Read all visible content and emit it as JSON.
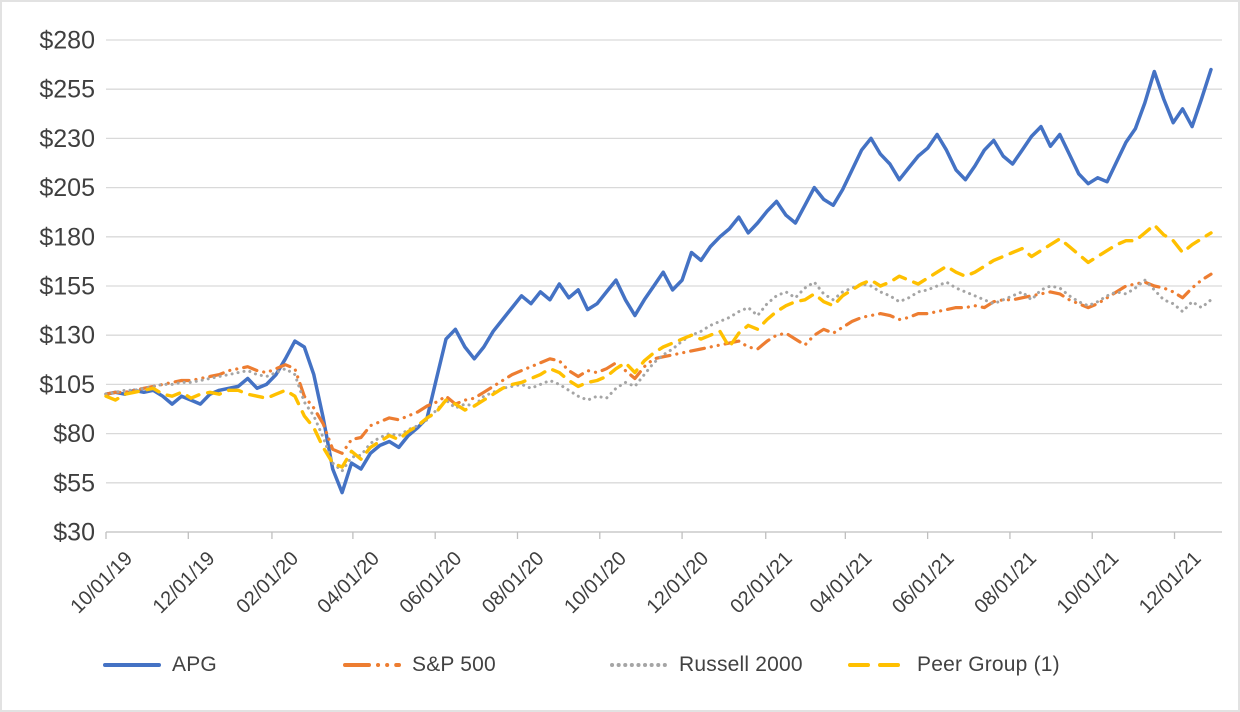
{
  "chart_data": {
    "type": "line",
    "title": "",
    "grid": true,
    "legend_position": "bottom",
    "y_axis": {
      "min": 30,
      "max": 280,
      "step": 25,
      "tick_labels": [
        "$30",
        "$55",
        "$80",
        "$105",
        "$130",
        "$155",
        "$180",
        "$205",
        "$230",
        "$255",
        "$280"
      ],
      "currency_prefix": "$"
    },
    "x_axis": {
      "tick_labels": [
        "10/01/19",
        "12/01/19",
        "02/01/20",
        "04/01/20",
        "06/01/20",
        "08/01/20",
        "10/01/20",
        "12/01/20",
        "02/01/21",
        "04/01/21",
        "06/01/21",
        "08/01/21",
        "10/01/21",
        "12/01/21"
      ],
      "tick_days": [
        0,
        61,
        123,
        183,
        244,
        305,
        366,
        427,
        489,
        548,
        609,
        670,
        731,
        792
      ],
      "total_days": 822
    },
    "dates": [
      "2019-10-01",
      "2019-10-08",
      "2019-10-15",
      "2019-10-22",
      "2019-10-29",
      "2019-11-05",
      "2019-11-12",
      "2019-11-19",
      "2019-11-26",
      "2019-12-03",
      "2019-12-10",
      "2019-12-17",
      "2019-12-24",
      "2019-12-31",
      "2020-01-07",
      "2020-01-14",
      "2020-01-21",
      "2020-01-28",
      "2020-02-04",
      "2020-02-11",
      "2020-02-18",
      "2020-02-25",
      "2020-03-03",
      "2020-03-10",
      "2020-03-17",
      "2020-03-24",
      "2020-03-31",
      "2020-04-07",
      "2020-04-14",
      "2020-04-21",
      "2020-04-28",
      "2020-05-05",
      "2020-05-12",
      "2020-05-19",
      "2020-05-26",
      "2020-06-02",
      "2020-06-09",
      "2020-06-16",
      "2020-06-23",
      "2020-06-30",
      "2020-07-07",
      "2020-07-14",
      "2020-07-21",
      "2020-07-28",
      "2020-08-04",
      "2020-08-11",
      "2020-08-18",
      "2020-08-25",
      "2020-09-01",
      "2020-09-08",
      "2020-09-15",
      "2020-09-22",
      "2020-09-29",
      "2020-10-06",
      "2020-10-13",
      "2020-10-20",
      "2020-10-27",
      "2020-11-03",
      "2020-11-10",
      "2020-11-17",
      "2020-11-24",
      "2020-12-01",
      "2020-12-08",
      "2020-12-15",
      "2020-12-22",
      "2020-12-29",
      "2021-01-05",
      "2021-01-12",
      "2021-01-19",
      "2021-01-26",
      "2021-02-02",
      "2021-02-09",
      "2021-02-16",
      "2021-02-23",
      "2021-03-02",
      "2021-03-09",
      "2021-03-16",
      "2021-03-23",
      "2021-03-30",
      "2021-04-06",
      "2021-04-13",
      "2021-04-20",
      "2021-04-27",
      "2021-05-04",
      "2021-05-11",
      "2021-05-18",
      "2021-05-25",
      "2021-06-01",
      "2021-06-08",
      "2021-06-15",
      "2021-06-22",
      "2021-06-29",
      "2021-07-06",
      "2021-07-13",
      "2021-07-20",
      "2021-07-27",
      "2021-08-03",
      "2021-08-10",
      "2021-08-17",
      "2021-08-24",
      "2021-08-31",
      "2021-09-07",
      "2021-09-14",
      "2021-09-21",
      "2021-09-28",
      "2021-10-05",
      "2021-10-12",
      "2021-10-19",
      "2021-10-26",
      "2021-11-02",
      "2021-11-09",
      "2021-11-16",
      "2021-11-23",
      "2021-11-30",
      "2021-12-07",
      "2021-12-14",
      "2021-12-21",
      "2021-12-28"
    ],
    "series": [
      {
        "name": "APG",
        "color": "#4472C4",
        "line_style": "solid",
        "values": [
          100,
          101,
          100,
          102,
          101,
          102,
          99,
          95,
          99,
          97,
          95,
          100,
          102,
          103,
          104,
          108,
          103,
          105,
          110,
          118,
          127,
          124,
          110,
          88,
          62,
          50,
          65,
          62,
          70,
          74,
          76,
          73,
          79,
          83,
          88,
          108,
          128,
          133,
          124,
          118,
          124,
          132,
          138,
          144,
          150,
          146,
          152,
          148,
          156,
          149,
          153,
          143,
          146,
          152,
          158,
          148,
          140,
          148,
          155,
          162,
          153,
          158,
          172,
          168,
          175,
          180,
          184,
          190,
          182,
          187,
          193,
          198,
          191,
          187,
          196,
          205,
          199,
          196,
          204,
          214,
          224,
          230,
          222,
          217,
          209,
          215,
          221,
          225,
          232,
          224,
          214,
          209,
          216,
          224,
          229,
          221,
          217,
          224,
          231,
          236,
          226,
          232,
          222,
          212,
          207,
          210,
          208,
          218,
          228,
          235,
          248,
          264,
          250,
          238,
          245,
          236,
          250,
          265
        ]
      },
      {
        "name": "S&P 500",
        "color": "#ED7D31",
        "line_style": "dash-dot-dot",
        "values": [
          100,
          101,
          101,
          102,
          103,
          104,
          105,
          106,
          107,
          107,
          108,
          109,
          110,
          112,
          113,
          114,
          112,
          111,
          113,
          115,
          113,
          99,
          93,
          85,
          72,
          70,
          77,
          78,
          84,
          86,
          88,
          87,
          89,
          91,
          94,
          96,
          99,
          95,
          97,
          98,
          101,
          104,
          107,
          110,
          112,
          114,
          116,
          118,
          117,
          112,
          109,
          112,
          111,
          113,
          116,
          112,
          108,
          114,
          118,
          119,
          120,
          121,
          122,
          123,
          124,
          125,
          126,
          127,
          124,
          123,
          127,
          130,
          131,
          128,
          125,
          130,
          133,
          131,
          134,
          137,
          139,
          140,
          141,
          140,
          138,
          139,
          141,
          141,
          142,
          143,
          144,
          144,
          145,
          144,
          147,
          148,
          148,
          149,
          150,
          151,
          152,
          151,
          148,
          146,
          144,
          146,
          149,
          152,
          155,
          156,
          157,
          155,
          154,
          152,
          149,
          154,
          158,
          161
        ]
      },
      {
        "name": "Russell 2000",
        "color": "#A5A5A5",
        "line_style": "dotted",
        "values": [
          100,
          101,
          102,
          102,
          103,
          104,
          105,
          105,
          106,
          106,
          107,
          108,
          109,
          110,
          111,
          112,
          110,
          109,
          111,
          113,
          110,
          96,
          89,
          78,
          65,
          61,
          68,
          69,
          75,
          78,
          80,
          79,
          82,
          84,
          87,
          92,
          97,
          93,
          95,
          94,
          99,
          101,
          103,
          104,
          105,
          103,
          105,
          107,
          105,
          102,
          99,
          97,
          99,
          98,
          103,
          106,
          104,
          110,
          116,
          120,
          123,
          127,
          130,
          132,
          135,
          137,
          139,
          142,
          144,
          140,
          146,
          150,
          152,
          149,
          154,
          157,
          151,
          148,
          152,
          154,
          156,
          155,
          152,
          150,
          147,
          149,
          152,
          153,
          155,
          157,
          154,
          152,
          150,
          148,
          146,
          148,
          150,
          152,
          148,
          153,
          155,
          154,
          150,
          147,
          145,
          147,
          150,
          152,
          151,
          154,
          158,
          153,
          148,
          146,
          142,
          147,
          144,
          148
        ]
      },
      {
        "name": "Peer Group (1)",
        "color": "#FFC000",
        "line_style": "long-dash",
        "values": [
          99,
          97,
          100,
          101,
          102,
          103,
          100,
          99,
          101,
          98,
          100,
          101,
          100,
          102,
          102,
          100,
          99,
          98,
          100,
          102,
          99,
          89,
          83,
          73,
          65,
          63,
          71,
          67,
          73,
          76,
          79,
          77,
          81,
          84,
          88,
          91,
          97,
          95,
          92,
          94,
          97,
          100,
          103,
          105,
          106,
          108,
          110,
          113,
          111,
          107,
          104,
          106,
          107,
          109,
          113,
          116,
          111,
          117,
          121,
          124,
          126,
          128,
          130,
          128,
          130,
          132,
          124,
          131,
          135,
          133,
          138,
          142,
          145,
          147,
          148,
          151,
          147,
          145,
          150,
          153,
          156,
          158,
          155,
          157,
          160,
          158,
          156,
          159,
          162,
          165,
          162,
          160,
          162,
          165,
          168,
          170,
          172,
          174,
          170,
          173,
          176,
          179,
          175,
          171,
          167,
          170,
          173,
          176,
          178,
          178,
          182,
          186,
          181,
          178,
          172,
          176,
          179,
          182
        ]
      }
    ]
  }
}
